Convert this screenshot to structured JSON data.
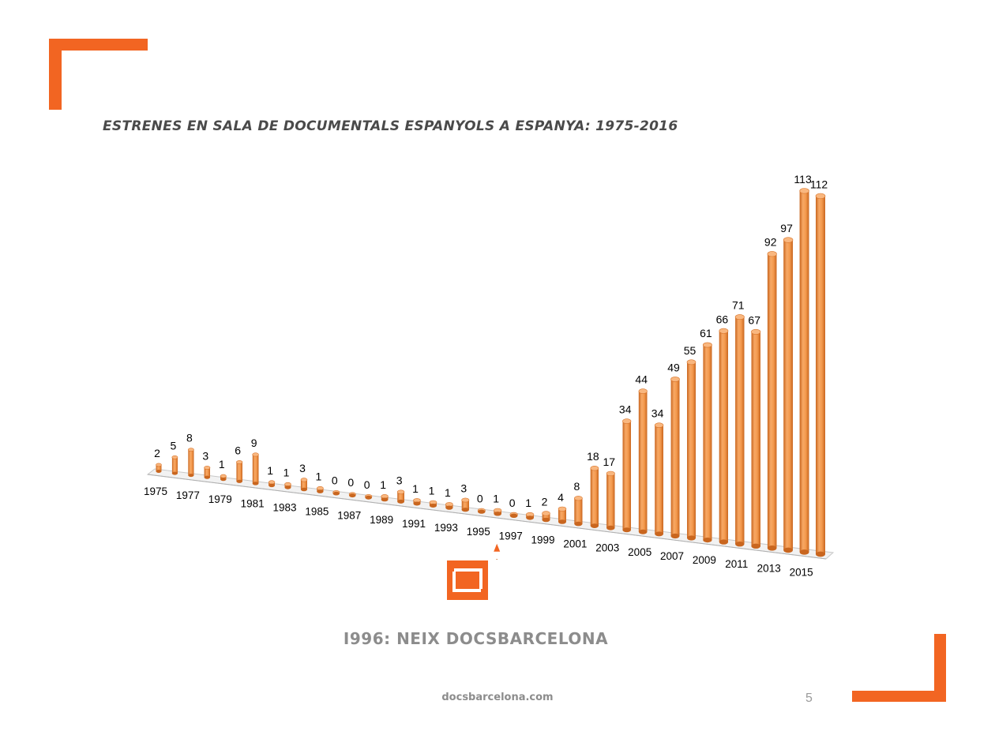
{
  "title": "ESTRENES EN SALA DE DOCUMENTALS ESPANYOLS A ESPANYA: 1975-2016",
  "subtitle": "I996: NEIX DOCSBARCELONA",
  "footer": {
    "url": "docsbarcelona.com",
    "page_number": "5"
  },
  "colors": {
    "accent": "#f26522",
    "bar": "#f4a15a",
    "bar_dark": "#d8742a",
    "text_gray": "#8c8c8c"
  },
  "chart_data": {
    "type": "bar",
    "style": "3d-perspective",
    "title": "ESTRENES EN SALA DE DOCUMENTALS ESPANYOLS A ESPANYA: 1975-2016",
    "categories": [
      "1975",
      "1976",
      "1977",
      "1978",
      "1979",
      "1980",
      "1981",
      "1982",
      "1983",
      "1984",
      "1985",
      "1986",
      "1987",
      "1988",
      "1989",
      "1990",
      "1991",
      "1992",
      "1993",
      "1994",
      "1995",
      "1996",
      "1997",
      "1998",
      "1999",
      "2000",
      "2001",
      "2002",
      "2003",
      "2004",
      "2005",
      "2006",
      "2007",
      "2008",
      "2009",
      "2010",
      "2011",
      "2012",
      "2013",
      "2014",
      "2015",
      "2016"
    ],
    "tick_labels": [
      "1975",
      "1977",
      "1979",
      "1981",
      "1983",
      "1985",
      "1987",
      "1989",
      "1991",
      "1993",
      "1995",
      "1997",
      "1999",
      "2001",
      "2003",
      "2005",
      "2007",
      "2009",
      "2011",
      "2013",
      "2015"
    ],
    "values": [
      2,
      5,
      8,
      3,
      1,
      6,
      9,
      1,
      1,
      3,
      1,
      0,
      0,
      0,
      1,
      3,
      1,
      1,
      1,
      3,
      0,
      1,
      0,
      1,
      2,
      4,
      8,
      18,
      17,
      34,
      44,
      34,
      49,
      55,
      61,
      66,
      71,
      67,
      92,
      97,
      113,
      112
    ],
    "data_labels": true,
    "annotation": {
      "category": "1996",
      "marker": "docsbarcelona-logo"
    }
  }
}
